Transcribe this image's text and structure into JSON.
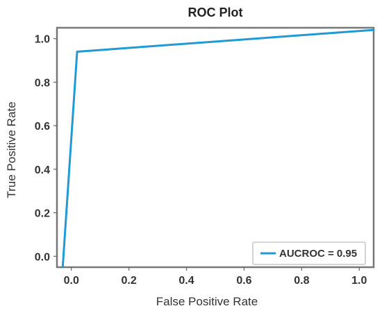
{
  "chart_data": {
    "type": "line",
    "title": "ROC Plot",
    "xlabel": "False Positive Rate",
    "ylabel": "True Positive Rate",
    "xlim": [
      -0.05,
      1.05
    ],
    "ylim": [
      -0.05,
      1.05
    ],
    "x_ticks": [
      "0.0",
      "0.2",
      "0.4",
      "0.6",
      "0.8",
      "1.0"
    ],
    "y_ticks": [
      "0.0",
      "0.2",
      "0.4",
      "0.6",
      "0.8",
      "1.0"
    ],
    "series": [
      {
        "name": "AUCROC = 0.95",
        "color": "#1f9ad6",
        "x": [
          -0.03,
          0.02,
          1.05
        ],
        "y": [
          -0.05,
          0.94,
          1.04
        ]
      }
    ],
    "grid": false,
    "legend": "bottom-right"
  }
}
